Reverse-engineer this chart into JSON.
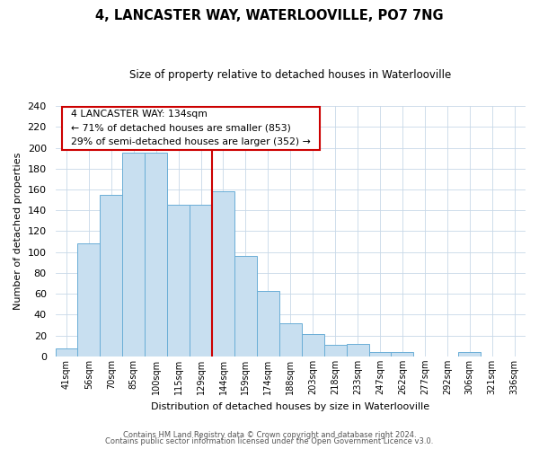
{
  "title": "4, LANCASTER WAY, WATERLOOVILLE, PO7 7NG",
  "subtitle": "Size of property relative to detached houses in Waterlooville",
  "xlabel": "Distribution of detached houses by size in Waterlooville",
  "ylabel": "Number of detached properties",
  "bar_labels": [
    "41sqm",
    "56sqm",
    "70sqm",
    "85sqm",
    "100sqm",
    "115sqm",
    "129sqm",
    "144sqm",
    "159sqm",
    "174sqm",
    "188sqm",
    "203sqm",
    "218sqm",
    "233sqm",
    "247sqm",
    "262sqm",
    "277sqm",
    "292sqm",
    "306sqm",
    "321sqm",
    "336sqm"
  ],
  "bar_values": [
    8,
    108,
    155,
    195,
    195,
    145,
    145,
    158,
    96,
    63,
    32,
    21,
    11,
    12,
    4,
    4,
    0,
    0,
    4,
    0,
    0
  ],
  "bar_color": "#c8dff0",
  "bar_edge_color": "#6aaed6",
  "vline_color": "#cc0000",
  "ylim": [
    0,
    240
  ],
  "yticks": [
    0,
    20,
    40,
    60,
    80,
    100,
    120,
    140,
    160,
    180,
    200,
    220,
    240
  ],
  "annotation_title": "4 LANCASTER WAY: 134sqm",
  "annotation_line1": "← 71% of detached houses are smaller (853)",
  "annotation_line2": "29% of semi-detached houses are larger (352) →",
  "annotation_box_color": "#ffffff",
  "annotation_box_edge": "#cc0000",
  "footer1": "Contains HM Land Registry data © Crown copyright and database right 2024.",
  "footer2": "Contains public sector information licensed under the Open Government Licence v3.0.",
  "background_color": "#ffffff",
  "grid_color": "#c8d8e8"
}
